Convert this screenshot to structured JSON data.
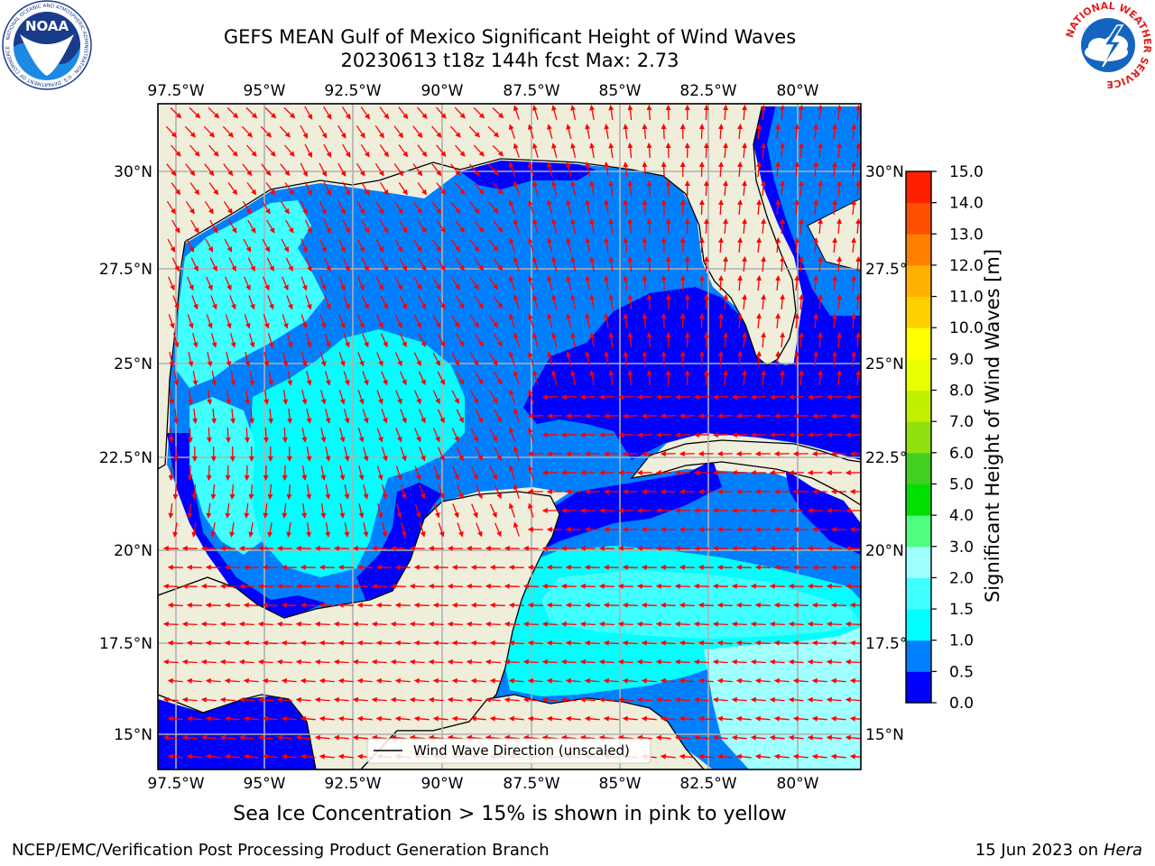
{
  "header": {
    "title_line1": "GEFS MEAN Gulf of Mexico Significant Height of Wind Waves",
    "title_line2": "20230613 t18z 144h fcst   Max: 2.73"
  },
  "logos": {
    "noaa_text": "NOAA",
    "noaa_ring_text": "NATIONAL OCEANIC AND ATMOSPHERIC ADMINISTRATION · U.S. DEPARTMENT OF COMMERCE",
    "nws_ring_text": "NATIONAL WEATHER SERVICE"
  },
  "map": {
    "lon_ticks": [
      "97.5°W",
      "95°W",
      "92.5°W",
      "90°W",
      "87.5°W",
      "85°W",
      "82.5°W",
      "80°W"
    ],
    "lat_ticks_left": [
      "30°N",
      "27.5°N",
      "25°N",
      "22.5°N",
      "20°N",
      "17.5°N",
      "15°N"
    ],
    "lat_ticks_right": [
      "30°N",
      "27.5°N",
      "25°N",
      "22.5°N",
      "20°N",
      "17.5°N",
      "15°N"
    ],
    "legend_label": "Wind Wave Direction (unscaled)",
    "colors": {
      "land": "#efeedb",
      "grid": "#b0b0b0",
      "arrow": "#ff0000",
      "coast": "#000000"
    }
  },
  "colorbar": {
    "label": "Significant Height of Wind Waves [m]",
    "ticks": [
      "0.0",
      "0.5",
      "1.0",
      "1.5",
      "2.0",
      "3.0",
      "4.0",
      "5.0",
      "6.0",
      "7.0",
      "8.0",
      "9.0",
      "10.0",
      "11.0",
      "12.0",
      "13.0",
      "14.0",
      "15.0"
    ],
    "colors": [
      "#0000ff",
      "#0080ff",
      "#00ffff",
      "#40ffff",
      "#a0ffff",
      "#50ff80",
      "#00e000",
      "#40d020",
      "#90e010",
      "#c0f000",
      "#e8ff00",
      "#ffff00",
      "#ffd000",
      "#ffb000",
      "#ff8000",
      "#ff5000",
      "#ff2000"
    ]
  },
  "footer": {
    "ice_note": "Sea Ice Concentration > 15% is shown in pink to yellow",
    "left": "NCEP/EMC/Verification Post Processing Product Generation Branch",
    "right_date": "15 Jun 2023 on",
    "right_host": "Hera"
  }
}
